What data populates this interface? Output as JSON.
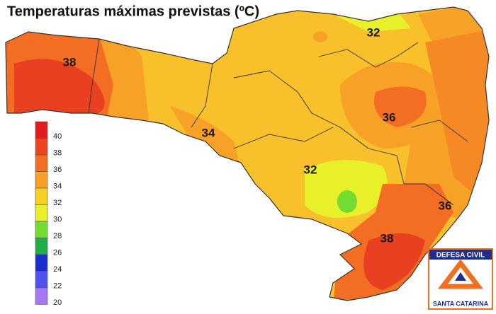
{
  "title": "Temperaturas máximas previstas (ºC)",
  "legend": {
    "items": [
      {
        "value": 40,
        "color": "#e41a1c"
      },
      {
        "value": 38,
        "color": "#ee4420"
      },
      {
        "value": 36,
        "color": "#f36d22"
      },
      {
        "value": 34,
        "color": "#f7a126"
      },
      {
        "value": 32,
        "color": "#f8cf22"
      },
      {
        "value": 30,
        "color": "#e8f02a"
      },
      {
        "value": 28,
        "color": "#74dc30"
      },
      {
        "value": 26,
        "color": "#1fae48"
      },
      {
        "value": 24,
        "color": "#1a2ed0"
      },
      {
        "value": 22,
        "color": "#4f52ee"
      },
      {
        "value": 20,
        "color": "#a678f2"
      }
    ]
  },
  "contour_labels": [
    38,
    34,
    32,
    36,
    32,
    36,
    38
  ],
  "logo": {
    "top": "DEFESA CIVIL",
    "bottom": "SANTA CATARINA"
  }
}
